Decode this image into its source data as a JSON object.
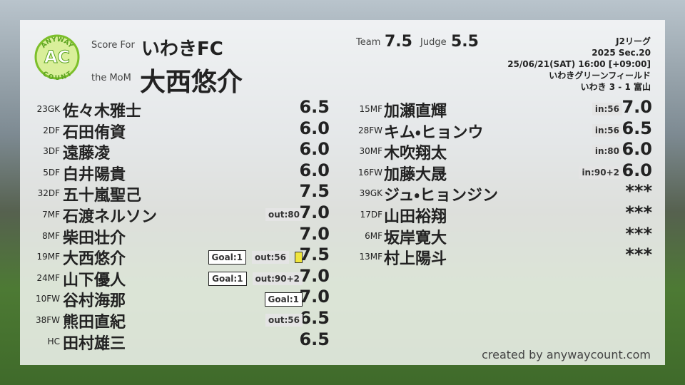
{
  "header": {
    "logo": {
      "top": "ANYWAY",
      "mark": "AC",
      "bottom": "COUNT"
    },
    "score_for_label": "Score For",
    "team": "いわきFC",
    "mom_label": "the MoM",
    "mom": "大西悠介",
    "team_label": "Team",
    "team_score": "7.5",
    "judge_label": "Judge",
    "judge_score": "5.5",
    "match": [
      "J2リーグ",
      "2025 Sec.20",
      "25/06/21(SAT) 16:00 [+09:00]",
      "いわきグリーンフィールド",
      "いわき 3 - 1 富山"
    ]
  },
  "left": [
    {
      "no": "23GK",
      "name": "佐々木雅士",
      "score": "6.5"
    },
    {
      "no": "2DF",
      "name": "石田侑資",
      "score": "6.0"
    },
    {
      "no": "3DF",
      "name": "遠藤凌",
      "score": "6.0"
    },
    {
      "no": "5DF",
      "name": "白井陽貴",
      "score": "6.0"
    },
    {
      "no": "32DF",
      "name": "五十嵐聖己",
      "score": "7.5"
    },
    {
      "no": "7MF",
      "name": "石渡ネルソン",
      "out": "out:80",
      "score": "7.0"
    },
    {
      "no": "8MF",
      "name": "柴田壮介",
      "score": "7.0"
    },
    {
      "no": "19MF",
      "name": "大西悠介",
      "goal": "Goal:1",
      "out": "out:56",
      "card": "yellow",
      "score": "7.5"
    },
    {
      "no": "24MF",
      "name": "山下優人",
      "goal": "Goal:1",
      "out": "out:90+2",
      "score": "7.0"
    },
    {
      "no": "10FW",
      "name": "谷村海那",
      "goal": "Goal:1",
      "score": "7.0"
    },
    {
      "no": "38FW",
      "name": "熊田直紀",
      "out": "out:56",
      "score": "6.5"
    },
    {
      "no": "HC",
      "name": "田村雄三",
      "score": "6.5"
    }
  ],
  "right": [
    {
      "no": "15MF",
      "name": "加瀬直輝",
      "in": "in:56",
      "score": "7.0"
    },
    {
      "no": "28FW",
      "name": "キム・ヒョンウ",
      "in": "in:56",
      "score": "6.5"
    },
    {
      "no": "30MF",
      "name": "木吹翔太",
      "in": "in:80",
      "score": "6.0"
    },
    {
      "no": "16FW",
      "name": "加藤大晟",
      "in": "in:90+2",
      "score": "6.0"
    },
    {
      "no": "39GK",
      "name": "ジュ・ヒョンジン",
      "score": "***"
    },
    {
      "no": "17DF",
      "name": "山田裕翔",
      "score": "***"
    },
    {
      "no": "6MF",
      "name": "坂岸寛大",
      "score": "***"
    },
    {
      "no": "13MF",
      "name": "村上陽斗",
      "score": "***"
    }
  ],
  "footer": "created by anywaycount.com"
}
